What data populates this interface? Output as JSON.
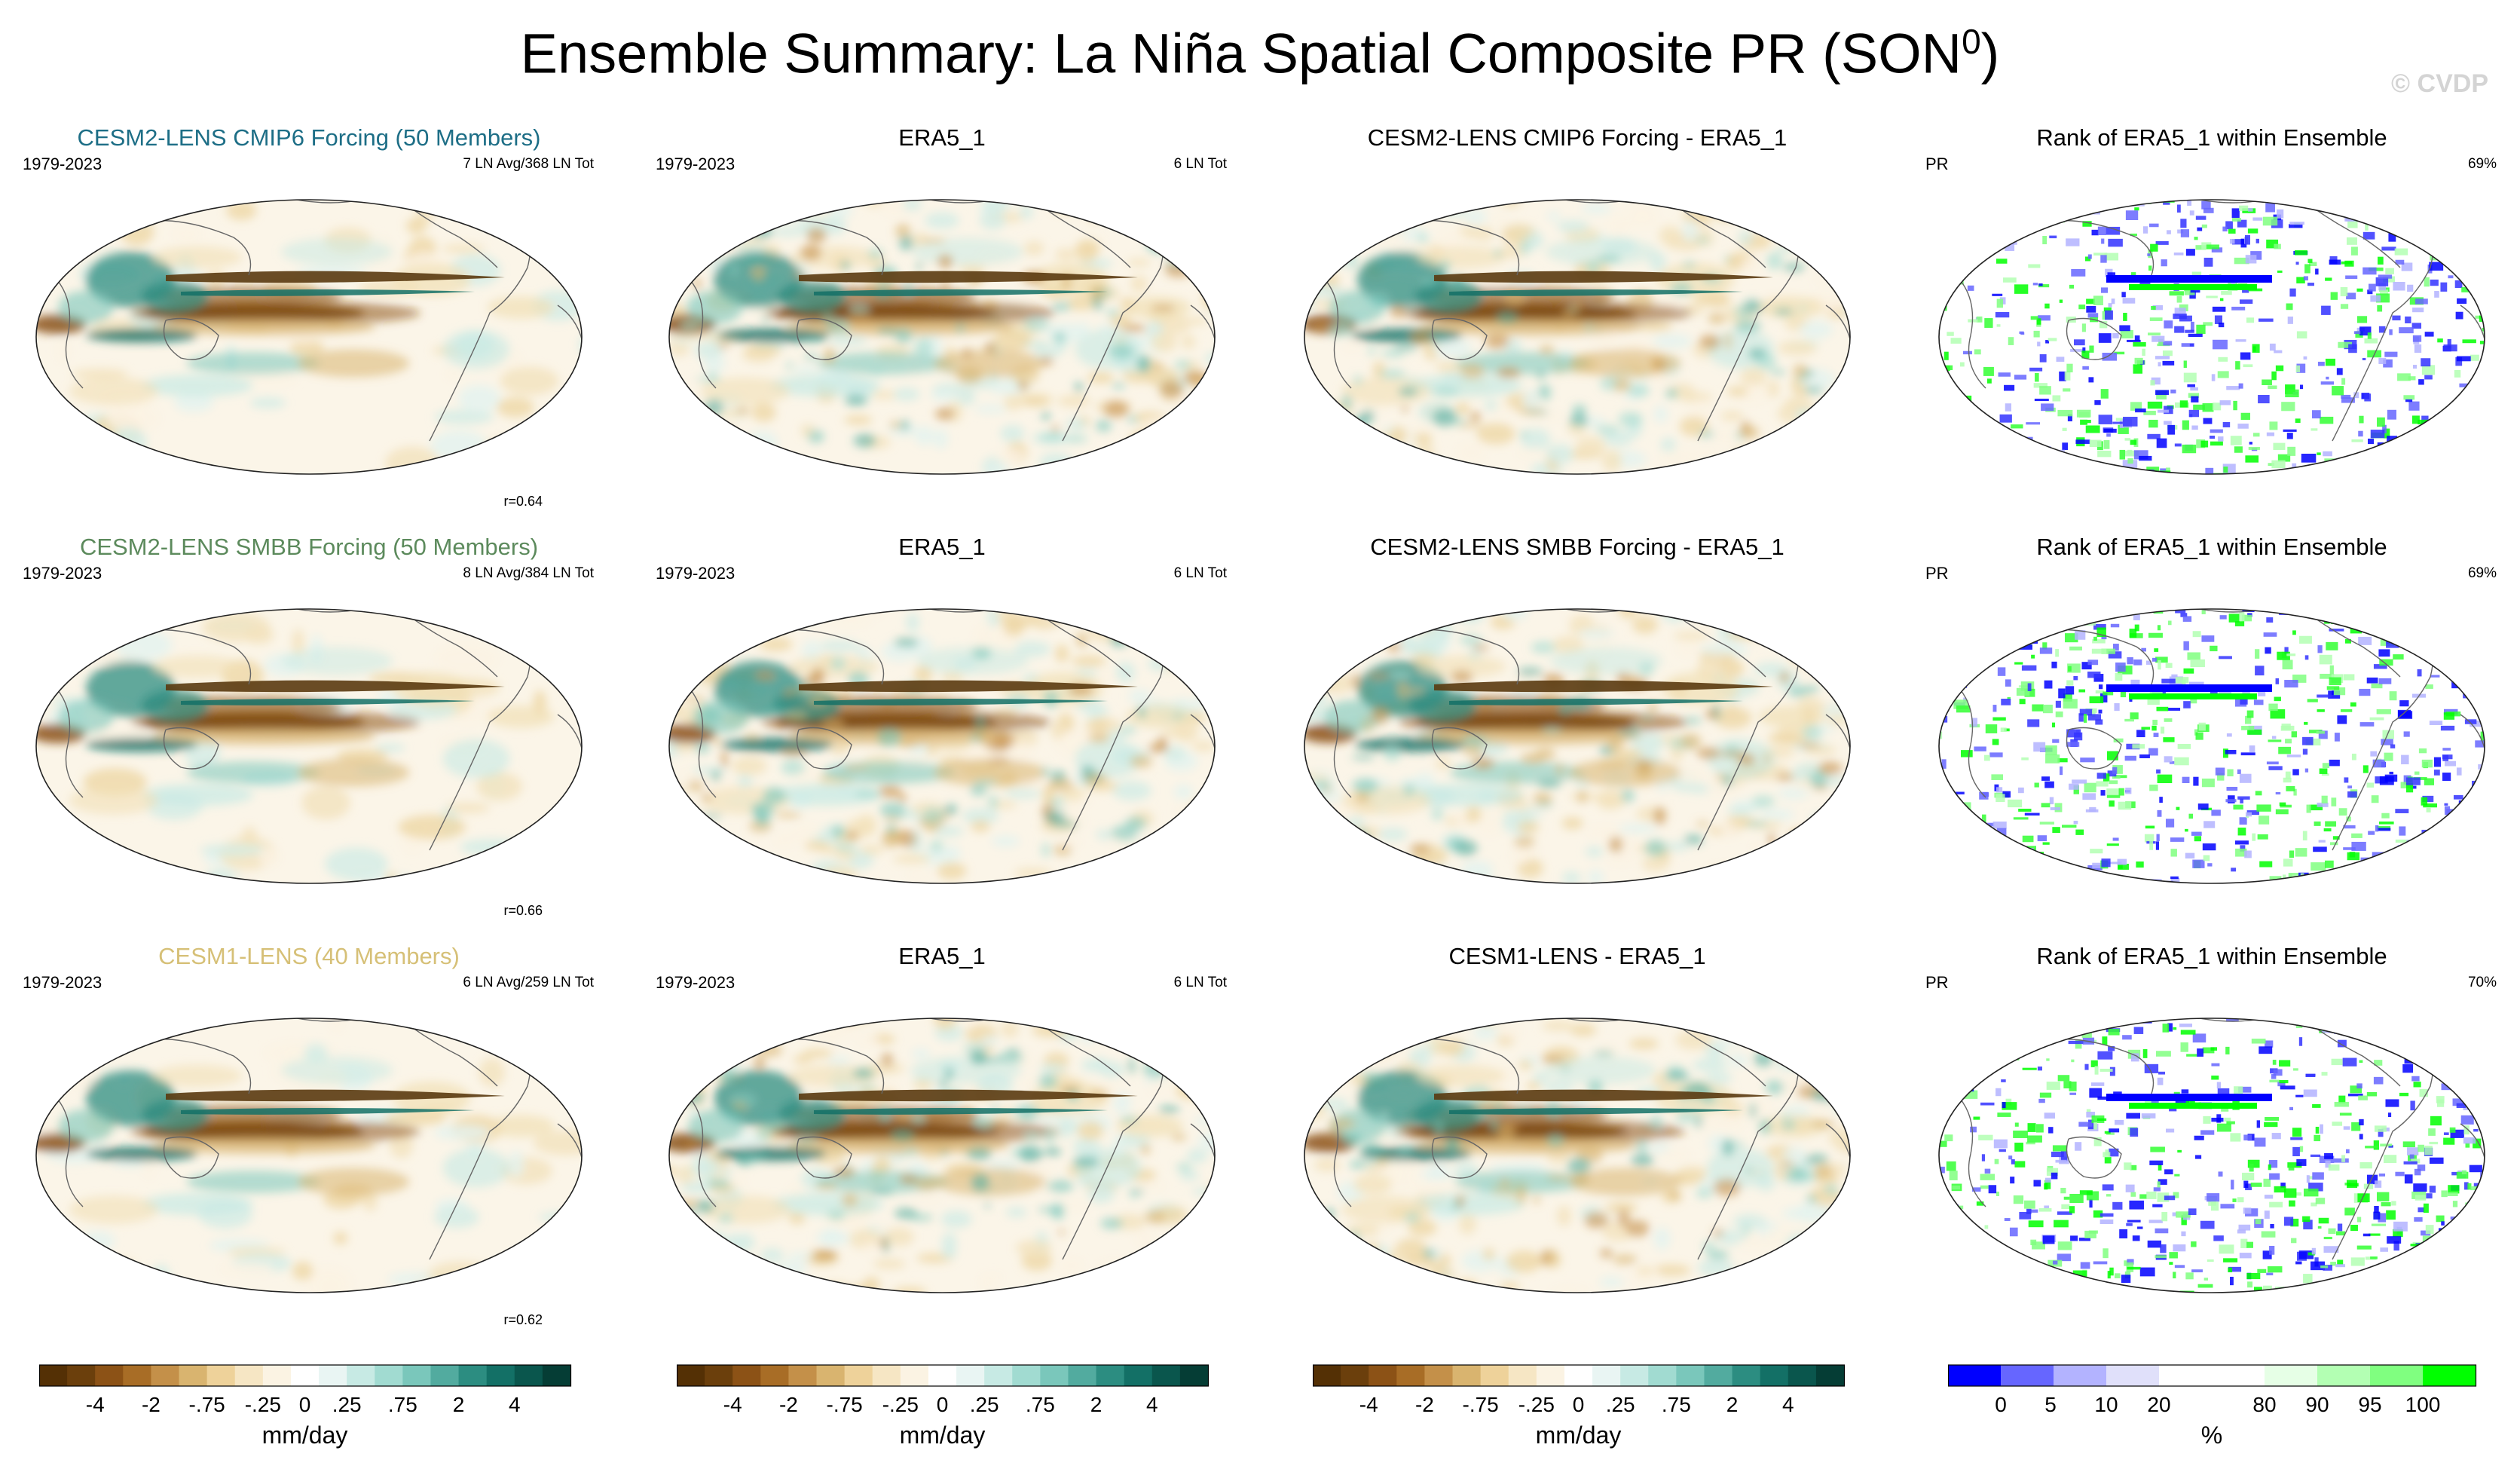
{
  "figure": {
    "title_main": "Ensemble Summary: La Niña Spatial Composite PR (SON",
    "title_sup": "0",
    "title_close": ")",
    "watermark": "© CVDP"
  },
  "colors": {
    "brown_dark": "#5a3a0f",
    "teal_dark": "#0b4a43",
    "rank_blue": "#0000ff",
    "rank_green": "#00ff00"
  },
  "chart_data": [
    {
      "type": "heatmap",
      "panel": "model-composite",
      "row": 1,
      "title": "CESM2-LENS CMIP6 Forcing (50 Members)",
      "title_color": "#1d6e86",
      "period": "1979-2023",
      "count": "7 LN Avg/368 LN Tot",
      "r": "r=0.64",
      "units": "mm/day",
      "projection": "robinson",
      "field": "PR anomaly"
    },
    {
      "type": "heatmap",
      "panel": "observed-composite",
      "row": 1,
      "title": "ERA5_1",
      "period": "1979-2023",
      "count": "6 LN Tot",
      "units": "mm/day",
      "projection": "robinson",
      "field": "PR anomaly"
    },
    {
      "type": "heatmap",
      "panel": "difference",
      "row": 1,
      "title": "CESM2-LENS CMIP6 Forcing - ERA5_1",
      "units": "mm/day",
      "projection": "robinson",
      "field": "PR difference"
    },
    {
      "type": "heatmap",
      "panel": "rank",
      "row": 1,
      "title": "Rank of ERA5_1 within Ensemble",
      "label": "PR",
      "pct": "69%",
      "units": "%",
      "projection": "robinson",
      "field": "rank percentile"
    },
    {
      "type": "heatmap",
      "panel": "model-composite",
      "row": 2,
      "title": "CESM2-LENS SMBB Forcing (50 Members)",
      "title_color": "#5c8a5c",
      "period": "1979-2023",
      "count": "8 LN Avg/384 LN Tot",
      "r": "r=0.66",
      "units": "mm/day",
      "projection": "robinson",
      "field": "PR anomaly"
    },
    {
      "type": "heatmap",
      "panel": "observed-composite",
      "row": 2,
      "title": "ERA5_1",
      "period": "1979-2023",
      "count": "6 LN Tot",
      "units": "mm/day",
      "projection": "robinson",
      "field": "PR anomaly"
    },
    {
      "type": "heatmap",
      "panel": "difference",
      "row": 2,
      "title": "CESM2-LENS SMBB Forcing - ERA5_1",
      "units": "mm/day",
      "projection": "robinson",
      "field": "PR difference"
    },
    {
      "type": "heatmap",
      "panel": "rank",
      "row": 2,
      "title": "Rank of ERA5_1 within Ensemble",
      "label": "PR",
      "pct": "69%",
      "units": "%",
      "projection": "robinson",
      "field": "rank percentile"
    },
    {
      "type": "heatmap",
      "panel": "model-composite",
      "row": 3,
      "title": "CESM1-LENS (40 Members)",
      "title_color": "#d6c077",
      "period": "1979-2023",
      "count": "6 LN Avg/259 LN Tot",
      "r": "r=0.62",
      "units": "mm/day",
      "projection": "robinson",
      "field": "PR anomaly"
    },
    {
      "type": "heatmap",
      "panel": "observed-composite",
      "row": 3,
      "title": "ERA5_1",
      "period": "1979-2023",
      "count": "6 LN Tot",
      "units": "mm/day",
      "projection": "robinson",
      "field": "PR anomaly"
    },
    {
      "type": "heatmap",
      "panel": "difference",
      "row": 3,
      "title": "CESM1-LENS - ERA5_1",
      "units": "mm/day",
      "projection": "robinson",
      "field": "PR difference"
    },
    {
      "type": "heatmap",
      "panel": "rank",
      "row": 3,
      "title": "Rank of ERA5_1 within Ensemble",
      "label": "PR",
      "pct": "70%",
      "units": "%",
      "projection": "robinson",
      "field": "rank percentile"
    }
  ],
  "colorbars": [
    {
      "units": "mm/day",
      "levels": [
        "-4",
        "-2",
        "-.75",
        "-.25",
        "0",
        ".25",
        ".75",
        "2",
        "4"
      ],
      "colors": [
        "#543005",
        "#6b3f0c",
        "#8c5216",
        "#a86d26",
        "#c49049",
        "#d9b46f",
        "#eed29a",
        "#f6e6c4",
        "#fbf3e3",
        "#ffffff",
        "#e9f5f3",
        "#c7eae4",
        "#a1dbd1",
        "#7ac7bb",
        "#52ab9f",
        "#2c8d81",
        "#137066",
        "#0a564d",
        "#053d35"
      ]
    },
    {
      "units": "mm/day",
      "levels": [
        "-4",
        "-2",
        "-.75",
        "-.25",
        "0",
        ".25",
        ".75",
        "2",
        "4"
      ],
      "colors": [
        "#543005",
        "#6b3f0c",
        "#8c5216",
        "#a86d26",
        "#c49049",
        "#d9b46f",
        "#eed29a",
        "#f6e6c4",
        "#fbf3e3",
        "#ffffff",
        "#e9f5f3",
        "#c7eae4",
        "#a1dbd1",
        "#7ac7bb",
        "#52ab9f",
        "#2c8d81",
        "#137066",
        "#0a564d",
        "#053d35"
      ]
    },
    {
      "units": "mm/day",
      "levels": [
        "-4",
        "-2",
        "-.75",
        "-.25",
        "0",
        ".25",
        ".75",
        "2",
        "4"
      ],
      "colors": [
        "#543005",
        "#6b3f0c",
        "#8c5216",
        "#a86d26",
        "#c49049",
        "#d9b46f",
        "#eed29a",
        "#f6e6c4",
        "#fbf3e3",
        "#ffffff",
        "#e9f5f3",
        "#c7eae4",
        "#a1dbd1",
        "#7ac7bb",
        "#52ab9f",
        "#2c8d81",
        "#137066",
        "#0a564d",
        "#053d35"
      ]
    },
    {
      "units": "%",
      "levels": [
        "0",
        "5",
        "10",
        "20",
        "80",
        "90",
        "95",
        "100"
      ],
      "colors": [
        "#0000ff",
        "#6666ff",
        "#b3b3ff",
        "#e0e0fa",
        "#ffffff",
        "#ffffff",
        "#e6ffe6",
        "#b3ffb3",
        "#80ff80",
        "#00ff00"
      ]
    }
  ]
}
